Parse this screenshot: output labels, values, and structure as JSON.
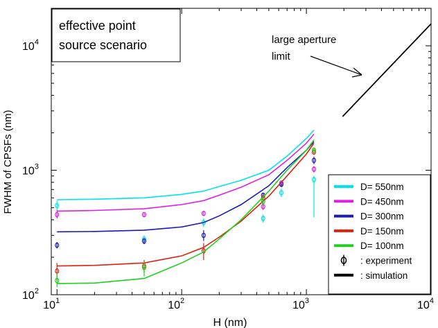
{
  "chart_data": {
    "type": "line",
    "xlabel": "H (nm)",
    "ylabel": "FWHM of CPSFs (nm)",
    "x_scale": "log",
    "y_scale": "log",
    "xlim": [
      9,
      10000
    ],
    "ylim": [
      100,
      20000
    ],
    "x_ticks": [
      {
        "base": "10",
        "exp": "1",
        "value": 10
      },
      {
        "base": "10",
        "exp": "2",
        "value": 100
      },
      {
        "base": "10",
        "exp": "3",
        "value": 1000
      },
      {
        "base": "10",
        "exp": "4",
        "value": 10000
      }
    ],
    "y_ticks": [
      {
        "base": "10",
        "exp": "2",
        "value": 100
      },
      {
        "base": "10",
        "exp": "3",
        "value": 1000
      },
      {
        "base": "10",
        "exp": "4",
        "value": 10000
      }
    ],
    "annotation_box": [
      "effective point",
      "source scenario"
    ],
    "arrow_annotation": [
      "large aperture",
      "limit"
    ],
    "large_aperture_limit": {
      "x": [
        1950,
        10000
      ],
      "y": [
        2700,
        15000
      ]
    },
    "series": [
      {
        "name": "D= 550nm",
        "color": "#00e5e5",
        "x": [
          10,
          20,
          50,
          100,
          150,
          200,
          300,
          500,
          700,
          1000,
          1150
        ],
        "y": [
          580,
          585,
          600,
          640,
          680,
          740,
          830,
          1000,
          1300,
          1800,
          2100
        ],
        "exp_x": [
          10,
          50,
          150,
          450,
          630,
          1150
        ],
        "exp_y": [
          520,
          280,
          380,
          410,
          660,
          840
        ],
        "exp_lo": [
          480,
          265,
          350,
          380,
          610,
          420
        ],
        "exp_hi": [
          570,
          300,
          410,
          440,
          710,
          900
        ]
      },
      {
        "name": "D= 450nm",
        "color": "#e020e0",
        "x": [
          10,
          20,
          50,
          100,
          150,
          200,
          300,
          500,
          700,
          1000,
          1150
        ],
        "y": [
          470,
          475,
          490,
          530,
          570,
          630,
          730,
          920,
          1200,
          1650,
          1950
        ],
        "exp_x": [
          10,
          50,
          150,
          450,
          630,
          1150
        ],
        "exp_y": [
          440,
          440,
          450,
          510,
          790,
          1020
        ],
        "exp_lo": [
          410,
          420,
          430,
          480,
          760,
          960
        ],
        "exp_hi": [
          480,
          460,
          470,
          540,
          820,
          1080
        ]
      },
      {
        "name": "D= 300nm",
        "color": "#1a1ab8",
        "x": [
          10,
          20,
          50,
          100,
          150,
          200,
          300,
          500,
          700,
          1000,
          1150
        ],
        "y": [
          320,
          322,
          330,
          350,
          380,
          430,
          530,
          750,
          1050,
          1450,
          1700
        ],
        "exp_x": [
          10,
          50,
          150,
          450,
          630,
          1150
        ],
        "exp_y": [
          250,
          270,
          300,
          630,
          770,
          1200
        ],
        "exp_lo": [
          235,
          255,
          270,
          600,
          740,
          1120
        ],
        "exp_hi": [
          265,
          285,
          330,
          660,
          800,
          1280
        ]
      },
      {
        "name": "D= 150nm",
        "color": "#e02010",
        "x": [
          10,
          20,
          50,
          100,
          150,
          200,
          300,
          500,
          700,
          1000,
          1150
        ],
        "y": [
          170,
          172,
          180,
          205,
          240,
          290,
          390,
          620,
          900,
          1350,
          1650
        ],
        "exp_x": [
          10,
          50,
          150,
          450,
          1150
        ],
        "exp_y": [
          155,
          170,
          225,
          600,
          1400
        ],
        "exp_lo": [
          130,
          150,
          190,
          570,
          1330
        ],
        "exp_hi": [
          180,
          190,
          260,
          630,
          1470
        ]
      },
      {
        "name": "D= 100nm",
        "color": "#20d020",
        "x": [
          10,
          20,
          50,
          100,
          150,
          200,
          300,
          500,
          700,
          1000,
          1150
        ],
        "y": [
          123,
          124,
          135,
          180,
          220,
          280,
          400,
          680,
          1000,
          1450,
          1750
        ],
        "exp_x": [
          10,
          50,
          450,
          1150
        ],
        "exp_y": [
          130,
          165,
          560,
          1450
        ],
        "exp_lo": [
          115,
          140,
          530,
          1380
        ],
        "exp_hi": [
          150,
          185,
          590,
          1520
        ]
      }
    ],
    "legend": {
      "placement": "bottom-right",
      "experiment_label": ": experiment",
      "simulation_label": ": simulation"
    }
  }
}
